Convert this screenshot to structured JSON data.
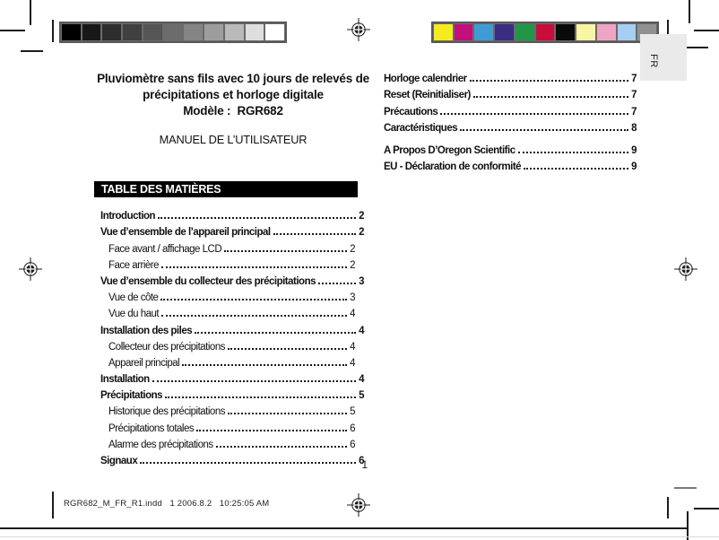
{
  "header": {
    "title": "Pluviomètre sans fils avec 10 jours de relevés de précipitations et horloge digitale",
    "model_line": "Modèle :  RGR682",
    "manual_line": "MANUEL DE L’UTILISATEUR"
  },
  "language_tab": "FR",
  "toc": {
    "heading": "TABLE DES MATIÈRES",
    "left": [
      {
        "label": "Introduction",
        "page": "2",
        "bold": true,
        "indent": false
      },
      {
        "label": "Vue d’ensemble de l’appareil principal",
        "page": "2",
        "bold": true,
        "indent": false
      },
      {
        "label": "Face avant / affichage LCD",
        "page": "2",
        "bold": false,
        "indent": true
      },
      {
        "label": "Face arrière",
        "page": "2",
        "bold": false,
        "indent": true
      },
      {
        "label": "Vue d’ensemble du collecteur des précipitations",
        "page": "3",
        "bold": true,
        "indent": false
      },
      {
        "label": "Vue de côte",
        "page": "3",
        "bold": false,
        "indent": true
      },
      {
        "label": "Vue du haut",
        "page": "4",
        "bold": false,
        "indent": true
      },
      {
        "label": "Installation des piles",
        "page": "4",
        "bold": true,
        "indent": false
      },
      {
        "label": "Collecteur des précipitations",
        "page": "4",
        "bold": false,
        "indent": true
      },
      {
        "label": "Appareil principal",
        "page": "4",
        "bold": false,
        "indent": true
      },
      {
        "label": "Installation",
        "page": "4",
        "bold": true,
        "indent": false
      },
      {
        "label": "Précipitations",
        "page": "5",
        "bold": true,
        "indent": false
      },
      {
        "label": "Historique des précipitations",
        "page": "5",
        "bold": false,
        "indent": true
      },
      {
        "label": "Précipitations totales",
        "page": "6",
        "bold": false,
        "indent": true
      },
      {
        "label": "Alarme des précipitations",
        "page": "6",
        "bold": false,
        "indent": true
      },
      {
        "label": "Signaux",
        "page": "6",
        "bold": true,
        "indent": false
      }
    ],
    "right": [
      {
        "label": "Horloge calendrier",
        "page": "7",
        "bold": true,
        "indent": false,
        "gap": false
      },
      {
        "label": "Reset (Reinitialiser)",
        "page": "7",
        "bold": true,
        "indent": false,
        "gap": false
      },
      {
        "label": "Précautions",
        "page": "7",
        "bold": true,
        "indent": false,
        "gap": false
      },
      {
        "label": "Caractéristiques",
        "page": "8",
        "bold": true,
        "indent": false,
        "gap": false
      },
      {
        "label": "A Propos D’Oregon Scientific",
        "page": "9",
        "bold": true,
        "indent": false,
        "gap": true
      },
      {
        "label": "EU - Déclaration de conformité",
        "page": "9",
        "bold": true,
        "indent": false,
        "gap": false
      }
    ]
  },
  "page_number": "1",
  "footer": "RGR682_M_FR_R1.indd   1 2006.8.2   10:25:05 AM",
  "calibration": {
    "grayscale": [
      "#000000",
      "#181818",
      "#2d2d2d",
      "#404040",
      "#555555",
      "#6c6c6c",
      "#848484",
      "#9d9d9d",
      "#bababa",
      "#dedede",
      "#ffffff"
    ],
    "colors": [
      "#f6eb1e",
      "#c20f7d",
      "#3e9bd6",
      "#392c83",
      "#209746",
      "#c70e3a",
      "#0a0a0a",
      "#f8f5a3",
      "#eda5c4",
      "#a6cdf2",
      "#8f9090"
    ]
  },
  "icons": {
    "registration_mark": "crosshair-registration-mark"
  }
}
